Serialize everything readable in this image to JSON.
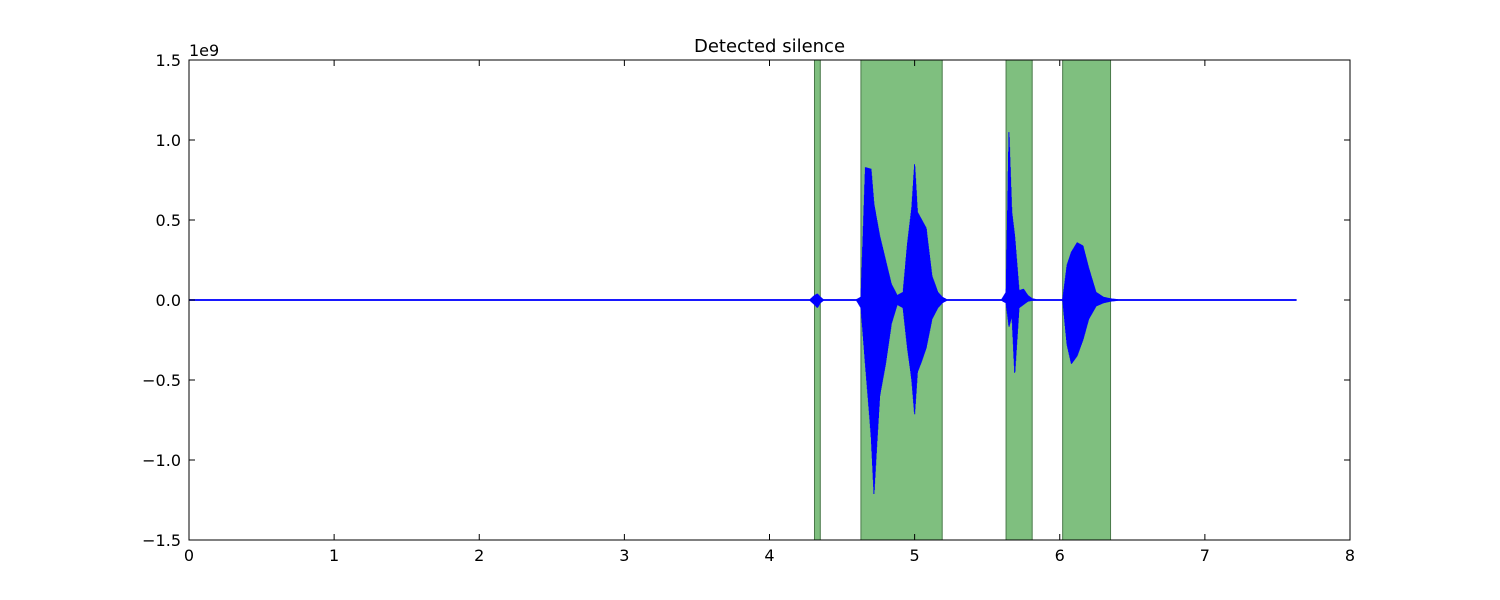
{
  "chart_data": {
    "type": "line",
    "title": "Detected silence",
    "xlabel": "",
    "ylabel": "",
    "xlim": [
      0,
      8
    ],
    "ylim": [
      -1.5,
      1.5
    ],
    "y_scale_label": "1e9",
    "x_ticks": [
      "0",
      "1",
      "2",
      "3",
      "4",
      "5",
      "6",
      "7",
      "8"
    ],
    "x_tick_values": [
      0,
      1,
      2,
      3,
      4,
      5,
      6,
      7,
      8
    ],
    "y_ticks": [
      "−1.5",
      "−1.0",
      "−0.5",
      "0.0",
      "0.5",
      "1.0",
      "1.5"
    ],
    "y_tick_values": [
      -1.5,
      -1.0,
      -0.5,
      0.0,
      0.5,
      1.0,
      1.5
    ],
    "grid": false,
    "colors": {
      "line": "#0000ff",
      "span_fill": "#7fbf7f",
      "span_edge": "#4a7a4a",
      "axes": "#000000"
    },
    "spans": [
      {
        "start": 4.31,
        "end": 4.35
      },
      {
        "start": 4.63,
        "end": 5.19
      },
      {
        "start": 5.63,
        "end": 5.81
      },
      {
        "start": 6.02,
        "end": 6.35
      }
    ],
    "series": [
      {
        "values_scale": "1e9",
        "envelope": {
          "x": [
            0.0,
            4.28,
            4.31,
            4.33,
            4.35,
            4.37,
            4.6,
            4.63,
            4.66,
            4.7,
            4.72,
            4.74,
            4.76,
            4.8,
            4.84,
            4.88,
            4.92,
            4.95,
            4.98,
            5.0,
            5.02,
            5.05,
            5.08,
            5.12,
            5.16,
            5.19,
            5.22,
            5.6,
            5.63,
            5.65,
            5.67,
            5.69,
            5.72,
            5.75,
            5.78,
            5.81,
            5.84,
            6.02,
            6.05,
            6.08,
            6.12,
            6.16,
            6.2,
            6.25,
            6.3,
            6.35,
            6.4,
            7.0,
            7.63
          ],
          "max": [
            0.005,
            0.005,
            0.03,
            0.04,
            0.02,
            0.005,
            0.005,
            0.02,
            0.83,
            0.82,
            0.6,
            0.5,
            0.4,
            0.25,
            0.1,
            0.03,
            0.05,
            0.35,
            0.58,
            0.86,
            0.55,
            0.5,
            0.45,
            0.15,
            0.05,
            0.02,
            0.005,
            0.005,
            0.05,
            1.07,
            0.55,
            0.4,
            0.06,
            0.07,
            0.03,
            0.01,
            0.005,
            0.005,
            0.22,
            0.3,
            0.36,
            0.34,
            0.2,
            0.05,
            0.02,
            0.01,
            0.005,
            0.005,
            0.005
          ],
          "min": [
            -0.005,
            -0.005,
            -0.03,
            -0.05,
            -0.02,
            -0.005,
            -0.005,
            -0.05,
            -0.4,
            -0.85,
            -1.22,
            -0.9,
            -0.6,
            -0.4,
            -0.15,
            -0.03,
            -0.05,
            -0.3,
            -0.5,
            -0.72,
            -0.45,
            -0.38,
            -0.3,
            -0.12,
            -0.05,
            -0.02,
            -0.005,
            -0.005,
            -0.02,
            -0.17,
            -0.1,
            -0.47,
            -0.05,
            -0.03,
            -0.01,
            -0.005,
            -0.005,
            -0.005,
            -0.28,
            -0.4,
            -0.35,
            -0.25,
            -0.12,
            -0.04,
            -0.02,
            -0.01,
            -0.005,
            -0.005,
            -0.005
          ]
        }
      }
    ]
  }
}
